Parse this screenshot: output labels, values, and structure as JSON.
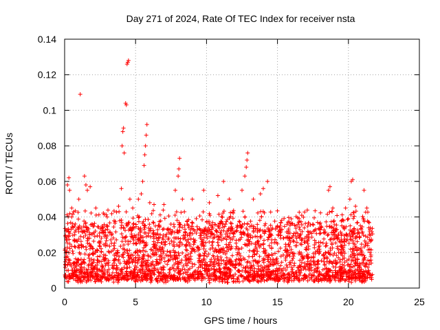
{
  "chart_data": {
    "type": "scatter",
    "title": "Day 271 of 2024, Rate Of TEC Index for receiver nsta",
    "xlabel": "GPS time / hours",
    "ylabel": "ROTI / TECUs",
    "xlim": [
      0,
      25
    ],
    "ylim": [
      0,
      0.14
    ],
    "x_ticks": [
      0,
      5,
      10,
      15,
      20,
      25
    ],
    "x_tick_labels": [
      "0",
      "5",
      "10",
      "15",
      "20",
      "25"
    ],
    "y_ticks": [
      0,
      0.02,
      0.04,
      0.06,
      0.08,
      0.1,
      0.12,
      0.14
    ],
    "y_tick_labels": [
      "0",
      "0.02",
      "0.04",
      "0.06",
      "0.08",
      "0.1",
      "0.12",
      "0.14"
    ],
    "grid": true,
    "marker": "plus",
    "series": [
      {
        "name": "ROTI",
        "color": "#ff0000",
        "x_range": [
          0,
          21.7
        ],
        "background_min": 0.003,
        "background_max": 0.035,
        "spike_points": [
          [
            0.2,
            0.058
          ],
          [
            0.3,
            0.062
          ],
          [
            0.35,
            0.055
          ],
          [
            0.5,
            0.045
          ],
          [
            1.0,
            0.05
          ],
          [
            1.1,
            0.109
          ],
          [
            1.4,
            0.063
          ],
          [
            1.5,
            0.058
          ],
          [
            1.6,
            0.055
          ],
          [
            1.8,
            0.057
          ],
          [
            2.2,
            0.045
          ],
          [
            3.0,
            0.04
          ],
          [
            3.8,
            0.046
          ],
          [
            4.0,
            0.056
          ],
          [
            4.05,
            0.08
          ],
          [
            4.1,
            0.088
          ],
          [
            4.15,
            0.09
          ],
          [
            4.2,
            0.076
          ],
          [
            4.3,
            0.104
          ],
          [
            4.35,
            0.103
          ],
          [
            4.4,
            0.126
          ],
          [
            4.45,
            0.127
          ],
          [
            4.5,
            0.128
          ],
          [
            4.6,
            0.05
          ],
          [
            4.8,
            0.045
          ],
          [
            5.2,
            0.05
          ],
          [
            5.4,
            0.053
          ],
          [
            5.5,
            0.06
          ],
          [
            5.6,
            0.069
          ],
          [
            5.65,
            0.075
          ],
          [
            5.7,
            0.08
          ],
          [
            5.75,
            0.086
          ],
          [
            5.8,
            0.092
          ],
          [
            6.0,
            0.048
          ],
          [
            6.3,
            0.047
          ],
          [
            7.0,
            0.047
          ],
          [
            7.8,
            0.055
          ],
          [
            8.0,
            0.063
          ],
          [
            8.05,
            0.067
          ],
          [
            8.1,
            0.073
          ],
          [
            8.3,
            0.05
          ],
          [
            9.0,
            0.05
          ],
          [
            9.8,
            0.055
          ],
          [
            10.2,
            0.048
          ],
          [
            10.8,
            0.052
          ],
          [
            11.2,
            0.06
          ],
          [
            11.6,
            0.05
          ],
          [
            12.5,
            0.055
          ],
          [
            12.7,
            0.063
          ],
          [
            12.8,
            0.068
          ],
          [
            12.85,
            0.072
          ],
          [
            12.9,
            0.076
          ],
          [
            13.3,
            0.05
          ],
          [
            13.8,
            0.053
          ],
          [
            14.0,
            0.056
          ],
          [
            14.3,
            0.06
          ],
          [
            15.0,
            0.035
          ],
          [
            16.5,
            0.037
          ],
          [
            18.6,
            0.055
          ],
          [
            18.7,
            0.057
          ],
          [
            18.9,
            0.045
          ],
          [
            19.8,
            0.045
          ],
          [
            20.1,
            0.05
          ],
          [
            20.2,
            0.06
          ],
          [
            20.3,
            0.061
          ],
          [
            20.5,
            0.046
          ],
          [
            21.1,
            0.055
          ],
          [
            21.3,
            0.045
          ]
        ]
      }
    ]
  }
}
